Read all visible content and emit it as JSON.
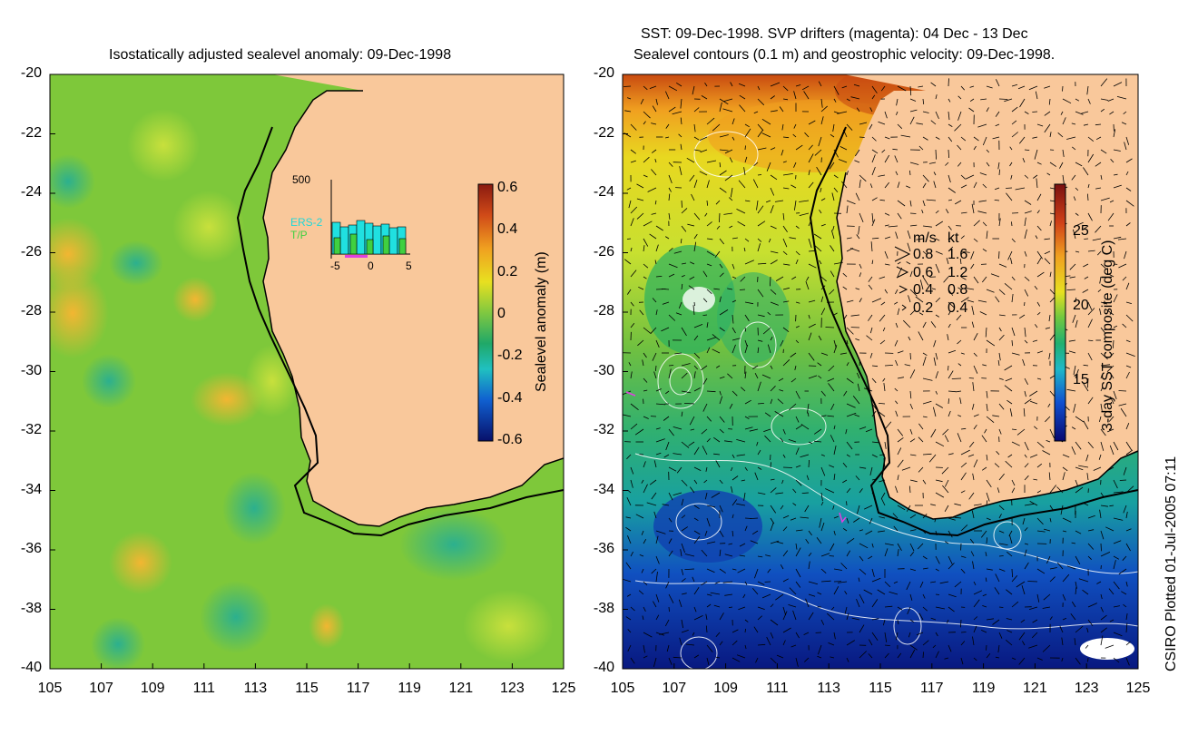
{
  "left_panel": {
    "title": "Isostatically adjusted sealevel anomaly: 09-Dec-1998",
    "yticks": [
      "-20",
      "-22",
      "-24",
      "-26",
      "-28",
      "-30",
      "-32",
      "-34",
      "-36",
      "-38",
      "-40"
    ],
    "xticks": [
      "105",
      "107",
      "109",
      "111",
      "113",
      "115",
      "117",
      "119",
      "121",
      "123",
      "125"
    ],
    "colorbar_label": "Sealevel anomaly (m)",
    "colorbar_ticks": [
      "0.6",
      "0.4",
      "0.2",
      "0",
      "-0.2",
      "-0.4",
      "-0.6"
    ],
    "inset": {
      "ymax": "500",
      "series": [
        "ERS-2",
        "T/P"
      ],
      "xticks": [
        "-5",
        "0",
        "5"
      ]
    }
  },
  "right_panel": {
    "title_line1": "SST: 09-Dec-1998. SVP drifters (magenta): 04 Dec - 13 Dec",
    "title_line2": "Sealevel contours (0.1 m) and geostrophic velocity: 09-Dec-1998.",
    "yticks": [
      "-20",
      "-22",
      "-24",
      "-26",
      "-28",
      "-30",
      "-32",
      "-34",
      "-36",
      "-38",
      "-40"
    ],
    "xticks": [
      "105",
      "107",
      "109",
      "111",
      "113",
      "115",
      "117",
      "119",
      "121",
      "123",
      "125"
    ],
    "colorbar_label": "3-day SST composite (deg C)",
    "colorbar_ticks": [
      "25",
      "20",
      "15"
    ],
    "velocity_legend": {
      "headers": [
        "m/s",
        "kt"
      ],
      "rows": [
        [
          "0.8",
          "1.6"
        ],
        [
          "0.6",
          "1.2"
        ],
        [
          "0.4",
          "0.8"
        ],
        [
          "0.2",
          "0.4"
        ]
      ]
    }
  },
  "credit": "CSIRO Plotted 01-Jul-2005 07:11",
  "colors": {
    "land": "#f9c89b",
    "ocean_mid": "#7ec83a",
    "coastline": "#000000",
    "drifter": "#e040e0"
  }
}
